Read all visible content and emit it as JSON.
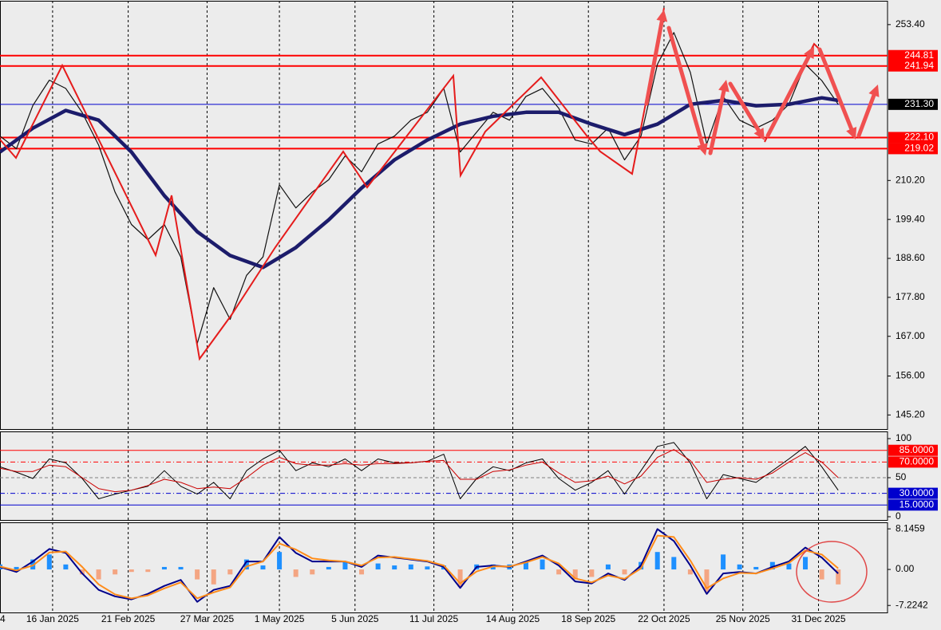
{
  "chart_data": [
    {
      "type": "line",
      "xlim": [
        0,
        270
      ],
      "ylim": [
        141.3,
        260
      ],
      "yticks": [
        {
          "value": 253.4,
          "label": "253.40"
        },
        {
          "value": 210.2,
          "label": "210.20"
        },
        {
          "value": 199.4,
          "label": "199.40"
        },
        {
          "value": 188.6,
          "label": "188.60"
        },
        {
          "value": 177.8,
          "label": "177.80"
        },
        {
          "value": 167,
          "label": "167.00"
        },
        {
          "value": 156,
          "label": "156.00"
        },
        {
          "value": 145.2,
          "label": "145.20"
        }
      ],
      "levels": [
        {
          "value": 244.81,
          "label": "244.81",
          "color": "#ff0000",
          "style": "solid"
        },
        {
          "value": 241.94,
          "label": "241.94",
          "color": "#ff0000",
          "style": "solid"
        },
        {
          "value": 231.3,
          "label": "231.30",
          "color": "#0000cd",
          "style": "solid",
          "box": "#000000"
        },
        {
          "value": 222.1,
          "label": "222.10",
          "color": "#ff0000",
          "style": "solid"
        },
        {
          "value": 219.02,
          "label": "219.02",
          "color": "#ff0000",
          "style": "solid"
        }
      ],
      "series": [
        {
          "color": "#111111",
          "width": 1.2,
          "x": [
            0,
            5,
            10,
            15,
            20,
            25,
            30,
            35,
            40,
            45,
            50,
            55,
            60,
            65,
            70,
            75,
            80,
            85,
            90,
            95,
            100,
            105,
            110,
            115,
            120,
            125,
            130,
            135,
            140,
            145,
            150,
            155,
            160,
            165,
            170,
            175,
            180,
            185,
            190,
            195,
            200,
            205,
            210,
            215,
            220,
            225,
            230,
            235,
            240,
            245,
            250,
            255
          ],
          "values": [
            222.5,
            219,
            231,
            238,
            235.7,
            229,
            220,
            207,
            198,
            193.8,
            198,
            189,
            165,
            180.5,
            171.7,
            183.9,
            189,
            209,
            202.6,
            207,
            210.4,
            217,
            212.6,
            220.3,
            222.5,
            226.9,
            229.1,
            235.7,
            218.1,
            223.6,
            229.1,
            226.9,
            233.5,
            235.7,
            230.2,
            221.4,
            220.3,
            224.7,
            215.9,
            222.5,
            242.4,
            251.2,
            240.2,
            220.3,
            233.5,
            226.9,
            224.7,
            226.9,
            231.3,
            242.4,
            237.9,
            231.3
          ]
        },
        {
          "color": "#1c1c6b",
          "width": 4.5,
          "x": [
            0,
            10,
            20,
            30,
            40,
            50,
            60,
            70,
            80,
            90,
            100,
            110,
            120,
            130,
            140,
            150,
            160,
            170,
            180,
            190,
            200,
            210,
            220,
            230,
            240,
            250,
            255
          ],
          "values": [
            218.1,
            224.7,
            229.6,
            226.9,
            218.1,
            206,
            196,
            189.4,
            186.1,
            191.6,
            199.3,
            208.1,
            215.9,
            221.4,
            225.8,
            228,
            229.1,
            229.1,
            225.8,
            222.9,
            225.8,
            231.3,
            232.4,
            230.9,
            231.3,
            233.1,
            232.4
          ]
        }
      ]
    },
    {
      "type": "line",
      "xlim": [
        0,
        270
      ],
      "ylim": [
        -4.1,
        109.2
      ],
      "yticks": [
        0,
        50,
        100
      ],
      "levels": [
        {
          "value": 85,
          "label": "85.0000",
          "color": "#ff0000",
          "style": "solid"
        },
        {
          "value": 70,
          "label": "70.0000",
          "color": "#ff0000",
          "style": "dashdot"
        },
        {
          "value": 50,
          "color": "#808080",
          "style": "dashed"
        },
        {
          "value": 30,
          "label": "30.0000",
          "color": "#0000cd",
          "style": "dashdot"
        },
        {
          "value": 15,
          "label": "15.0000",
          "color": "#0000cd",
          "style": "solid"
        }
      ],
      "x": [
        0,
        5,
        10,
        15,
        20,
        25,
        30,
        35,
        40,
        45,
        50,
        55,
        60,
        65,
        70,
        75,
        80,
        85,
        90,
        95,
        100,
        105,
        110,
        115,
        120,
        125,
        130,
        135,
        140,
        145,
        150,
        155,
        160,
        165,
        170,
        175,
        180,
        185,
        190,
        195,
        200,
        205,
        210,
        215,
        220,
        225,
        230,
        235,
        240,
        245,
        250,
        255
      ],
      "series": [
        {
          "color": "#000000",
          "width": 1,
          "values": [
            64,
            57,
            49,
            74,
            69,
            49,
            23,
            29,
            34,
            39,
            59,
            39,
            29,
            44,
            23,
            59,
            74,
            85,
            59,
            69,
            64,
            74,
            59,
            74,
            69,
            69,
            71,
            80,
            23,
            49,
            64,
            59,
            69,
            74,
            49,
            34,
            44,
            59,
            29,
            59,
            90,
            95,
            69,
            23,
            54,
            49,
            44,
            59,
            74,
            90,
            64,
            34
          ]
        },
        {
          "color": "#cc0000",
          "width": 1,
          "values": [
            62,
            58,
            58,
            66,
            64,
            50,
            36,
            32,
            34,
            40,
            48,
            44,
            36,
            38,
            36,
            50,
            66,
            76,
            68,
            66,
            66,
            68,
            66,
            68,
            68,
            69,
            71,
            72,
            48,
            48,
            58,
            60,
            66,
            70,
            56,
            44,
            46,
            52,
            42,
            52,
            76,
            86,
            72,
            44,
            48,
            50,
            48,
            56,
            70,
            82,
            70,
            50
          ]
        }
      ]
    },
    {
      "type": "bar",
      "xlim": [
        0,
        270
      ],
      "ylim": [
        -8.63,
        9.45
      ],
      "yticks": [
        -7.2242,
        {
          "value": 0,
          "label": "0.00"
        },
        8.1459
      ],
      "grid": true,
      "xticks": [
        {
          "value": 0,
          "label": "4"
        },
        {
          "value": 16,
          "label": "16 Jan 2025"
        },
        {
          "value": 39,
          "label": "21 Feb 2025"
        },
        {
          "value": 63,
          "label": "27 Mar 2025"
        },
        {
          "value": 85,
          "label": "1 May 2025"
        },
        {
          "value": 108,
          "label": "5 Jun 2025"
        },
        {
          "value": 132,
          "label": "11 Jul 2025"
        },
        {
          "value": 156,
          "label": "14 Aug 2025"
        },
        {
          "value": 179,
          "label": "18 Sep 2025"
        },
        {
          "value": 202,
          "label": "22 Oct 2025"
        },
        {
          "value": 226,
          "label": "25 Nov 2025"
        },
        {
          "value": 249,
          "label": "31 Dec 2025"
        }
      ],
      "x": [
        0,
        5,
        10,
        15,
        20,
        25,
        30,
        35,
        40,
        45,
        50,
        55,
        60,
        65,
        70,
        75,
        80,
        85,
        90,
        95,
        100,
        105,
        110,
        115,
        120,
        125,
        130,
        135,
        140,
        145,
        150,
        155,
        160,
        165,
        170,
        175,
        180,
        185,
        190,
        195,
        200,
        205,
        210,
        215,
        220,
        225,
        230,
        235,
        240,
        245,
        250,
        255
      ],
      "values": [
        1,
        0.5,
        2,
        3,
        1,
        -1,
        -2,
        -1,
        -0.5,
        -0.5,
        0.5,
        0.5,
        -2,
        -3,
        -1,
        2,
        0.8,
        3.5,
        -1.5,
        -1,
        0.5,
        1.5,
        -1,
        1.2,
        0.8,
        1,
        0.6,
        0.8,
        -3.5,
        1,
        1,
        1,
        1.5,
        2,
        -1,
        -2,
        -1.5,
        1,
        -1,
        1.5,
        3.5,
        2.5,
        -1,
        -4.5,
        3,
        1,
        0.5,
        1.5,
        1.2,
        2.5,
        -2,
        -3
      ],
      "colors": {
        "positive": "#1e90ff",
        "negative": "#f4a582"
      },
      "series": [
        {
          "color": "#00008b",
          "width": 2,
          "values": [
            0.5,
            -0.5,
            1.6,
            4.1,
            3.3,
            -0.8,
            -4.1,
            -5.4,
            -6,
            -4.9,
            -3.3,
            -2.1,
            -6.5,
            -4.1,
            -3.3,
            1.6,
            1.6,
            6.5,
            3.3,
            1.6,
            1.6,
            1.6,
            0.5,
            2.8,
            2.4,
            2,
            1.6,
            0.5,
            -3.7,
            0.5,
            0.8,
            0.5,
            1.6,
            2.8,
            0.8,
            -2.4,
            -2.8,
            -0.8,
            -2.1,
            0.8,
            8.1,
            5.7,
            0.8,
            -4.9,
            -0.8,
            -0.5,
            -0.8,
            0.5,
            1.6,
            4.4,
            2.4,
            -0.8
          ]
        },
        {
          "color": "#ff8c1a",
          "width": 2,
          "values": [
            0.6,
            -0.2,
            0.8,
            3.4,
            3.6,
            0.5,
            -3,
            -5,
            -5.8,
            -5.2,
            -3.8,
            -2.6,
            -5.8,
            -4.6,
            -3.6,
            0.6,
            1.6,
            5.2,
            4,
            2.2,
            1.8,
            1.6,
            0.8,
            2.4,
            2.5,
            2.1,
            1.7,
            0.8,
            -2.8,
            -0.4,
            0.6,
            0.6,
            1.4,
            2.5,
            1.2,
            -1.8,
            -2.6,
            -1.2,
            -1.9,
            0.2,
            6.8,
            6.5,
            1.8,
            -3.8,
            -1.8,
            -0.7,
            -0.8,
            0.2,
            1.3,
            3.8,
            3,
            0.2
          ]
        }
      ]
    }
  ]
}
